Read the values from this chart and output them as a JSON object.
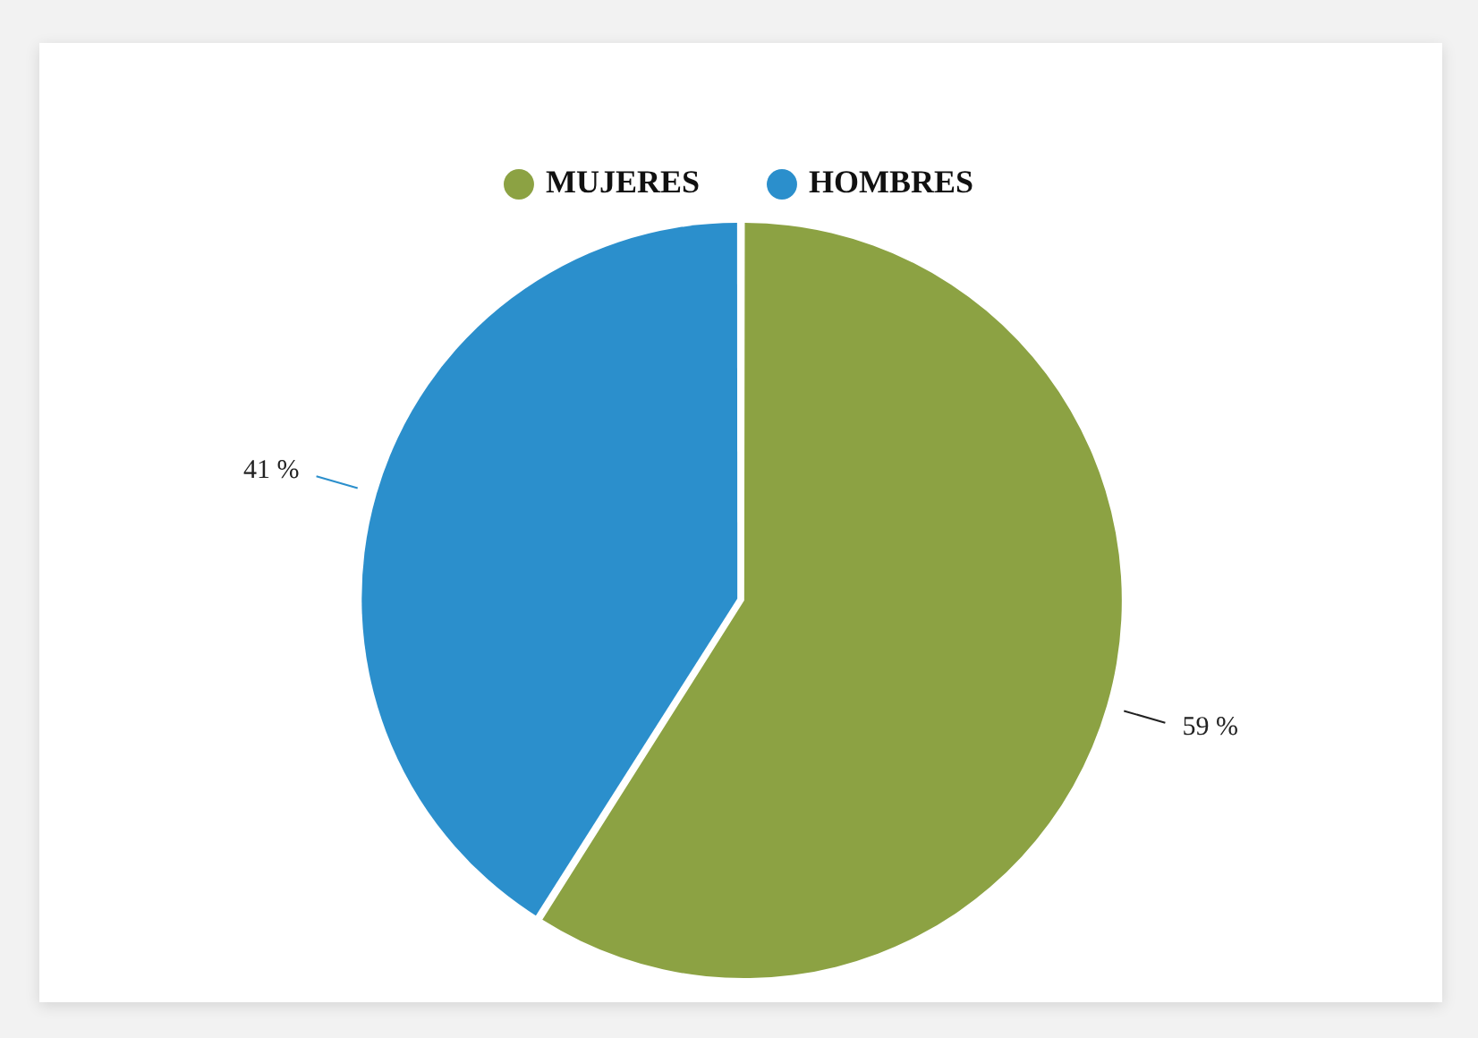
{
  "chart_data": {
    "type": "pie",
    "categories": [
      "MUJERES",
      "HOMBRES"
    ],
    "values": [
      59,
      41
    ],
    "colors": [
      "#8ca243",
      "#2b8fcc"
    ],
    "value_labels": [
      "59 %",
      "41 %"
    ],
    "legend": "top"
  }
}
